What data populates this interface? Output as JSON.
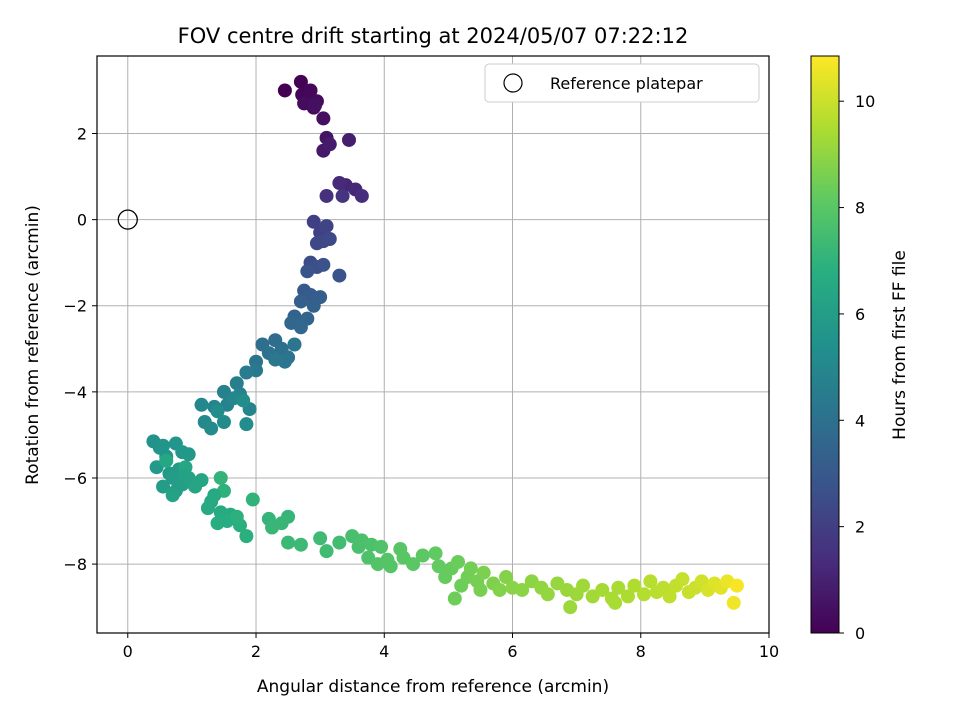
{
  "chart_data": {
    "type": "scatter",
    "title": "FOV centre drift starting at 2024/05/07 07:22:12",
    "xlabel": "Angular distance from reference (arcmin)",
    "ylabel": "Rotation from reference (arcmin)",
    "xlim": [
      -0.48,
      10
    ],
    "ylim": [
      -9.6,
      3.8
    ],
    "xticks": [
      0,
      2,
      4,
      6,
      8,
      10
    ],
    "yticks": [
      -8,
      -6,
      -4,
      -2,
      0,
      2
    ],
    "grid": true,
    "legend": {
      "position": "upper-right",
      "label": "Reference platepar"
    },
    "reference_point": {
      "x": 0,
      "y": 0
    },
    "colorbar": {
      "label": "Hours from first FF file",
      "range": [
        0,
        10.85
      ],
      "ticks": [
        0,
        2,
        4,
        6,
        8,
        10
      ],
      "colormap": "viridis"
    },
    "series": [
      {
        "columns": [
          "x",
          "y",
          "hours"
        ],
        "points": [
          [
            2.45,
            3.0,
            0.0
          ],
          [
            2.7,
            3.2,
            0.05
          ],
          [
            2.72,
            2.9,
            0.1
          ],
          [
            2.8,
            2.75,
            0.15
          ],
          [
            2.85,
            3.0,
            0.2
          ],
          [
            2.9,
            2.6,
            0.25
          ],
          [
            2.95,
            2.75,
            0.3
          ],
          [
            2.75,
            2.7,
            0.35
          ],
          [
            3.05,
            2.35,
            0.4
          ],
          [
            2.92,
            2.65,
            0.45
          ],
          [
            3.1,
            1.9,
            0.6
          ],
          [
            3.05,
            1.6,
            0.7
          ],
          [
            3.15,
            1.75,
            0.8
          ],
          [
            3.45,
            1.85,
            0.9
          ],
          [
            3.4,
            0.8,
            1.1
          ],
          [
            3.55,
            0.7,
            1.2
          ],
          [
            3.3,
            0.85,
            1.3
          ],
          [
            3.65,
            0.55,
            1.4
          ],
          [
            3.1,
            0.55,
            1.5
          ],
          [
            3.35,
            0.55,
            1.6
          ],
          [
            2.9,
            -0.05,
            2.0
          ],
          [
            3.0,
            -0.3,
            2.1
          ],
          [
            3.1,
            -0.15,
            2.2
          ],
          [
            3.05,
            -0.5,
            2.3
          ],
          [
            2.95,
            -0.55,
            2.35
          ],
          [
            3.15,
            -0.45,
            2.4
          ],
          [
            2.85,
            -1.0,
            2.5
          ],
          [
            2.95,
            -1.1,
            2.6
          ],
          [
            3.05,
            -1.05,
            2.7
          ],
          [
            2.8,
            -1.2,
            2.75
          ],
          [
            3.3,
            -1.3,
            2.8
          ],
          [
            2.75,
            -1.65,
            3.0
          ],
          [
            2.85,
            -1.75,
            3.1
          ],
          [
            3.0,
            -1.8,
            3.2
          ],
          [
            2.7,
            -1.9,
            3.3
          ],
          [
            2.9,
            -2.0,
            3.35
          ],
          [
            2.6,
            -2.25,
            3.4
          ],
          [
            2.8,
            -2.3,
            3.5
          ],
          [
            2.55,
            -2.4,
            3.6
          ],
          [
            2.7,
            -2.5,
            3.65
          ],
          [
            2.3,
            -2.8,
            3.8
          ],
          [
            2.1,
            -2.9,
            3.9
          ],
          [
            2.4,
            -3.0,
            4.0
          ],
          [
            2.2,
            -3.1,
            4.05
          ],
          [
            2.5,
            -3.2,
            4.1
          ],
          [
            2.0,
            -3.3,
            4.15
          ],
          [
            2.6,
            -2.9,
            4.2
          ],
          [
            2.45,
            -3.3,
            4.25
          ],
          [
            2.3,
            -3.25,
            4.3
          ],
          [
            2.0,
            -3.5,
            4.35
          ],
          [
            1.85,
            -3.55,
            4.5
          ],
          [
            1.7,
            -3.8,
            4.6
          ],
          [
            1.5,
            -4.0,
            4.7
          ],
          [
            1.75,
            -4.05,
            4.75
          ],
          [
            1.55,
            -4.3,
            4.8
          ],
          [
            1.9,
            -4.4,
            4.85
          ],
          [
            1.35,
            -4.35,
            4.9
          ],
          [
            1.65,
            -4.15,
            4.95
          ],
          [
            1.15,
            -4.3,
            5.0
          ],
          [
            1.2,
            -4.7,
            5.05
          ],
          [
            1.3,
            -4.85,
            5.1
          ],
          [
            1.5,
            -4.7,
            5.15
          ],
          [
            1.85,
            -4.75,
            5.2
          ],
          [
            1.4,
            -4.45,
            5.25
          ],
          [
            1.8,
            -4.2,
            5.3
          ],
          [
            0.4,
            -5.15,
            5.5
          ],
          [
            0.5,
            -5.3,
            5.55
          ],
          [
            0.6,
            -5.5,
            5.6
          ],
          [
            0.75,
            -5.2,
            5.65
          ],
          [
            0.85,
            -5.4,
            5.7
          ],
          [
            0.95,
            -5.45,
            5.75
          ],
          [
            0.45,
            -5.75,
            5.8
          ],
          [
            0.65,
            -5.9,
            5.85
          ],
          [
            0.8,
            -5.8,
            5.9
          ],
          [
            0.7,
            -6.0,
            5.95
          ],
          [
            0.55,
            -6.2,
            6.0
          ],
          [
            0.75,
            -6.3,
            6.05
          ],
          [
            0.85,
            -6.15,
            6.1
          ],
          [
            1.0,
            -6.1,
            6.15
          ],
          [
            0.7,
            -6.4,
            6.2
          ],
          [
            0.95,
            -6.0,
            6.25
          ],
          [
            1.05,
            -6.2,
            6.3
          ],
          [
            1.15,
            -6.05,
            6.35
          ],
          [
            0.9,
            -5.75,
            6.4
          ],
          [
            0.6,
            -5.6,
            6.45
          ],
          [
            1.3,
            -6.55,
            6.5
          ],
          [
            1.25,
            -6.7,
            6.55
          ],
          [
            1.45,
            -6.8,
            6.6
          ],
          [
            1.6,
            -6.85,
            6.65
          ],
          [
            1.55,
            -7.0,
            6.7
          ],
          [
            1.4,
            -7.05,
            6.75
          ],
          [
            1.75,
            -7.1,
            6.8
          ],
          [
            1.85,
            -7.35,
            6.85
          ],
          [
            1.7,
            -6.9,
            6.9
          ],
          [
            1.5,
            -6.3,
            6.95
          ],
          [
            1.95,
            -6.5,
            7.0
          ],
          [
            1.45,
            -6.0,
            7.05
          ],
          [
            2.2,
            -6.95,
            7.1
          ],
          [
            2.5,
            -6.9,
            7.15
          ],
          [
            2.4,
            -7.05,
            7.2
          ],
          [
            2.5,
            -7.5,
            7.25
          ],
          [
            2.7,
            -7.55,
            7.3
          ],
          [
            3.0,
            -7.4,
            7.35
          ],
          [
            3.1,
            -7.7,
            7.4
          ],
          [
            3.3,
            -7.5,
            7.45
          ],
          [
            3.5,
            -7.35,
            7.6
          ],
          [
            3.65,
            -7.45,
            7.65
          ],
          [
            3.8,
            -7.55,
            7.7
          ],
          [
            3.75,
            -7.85,
            7.75
          ],
          [
            3.95,
            -7.6,
            7.8
          ],
          [
            3.9,
            -8.0,
            7.85
          ],
          [
            4.05,
            -7.9,
            7.9
          ],
          [
            4.25,
            -7.65,
            7.95
          ],
          [
            4.3,
            -7.85,
            8.0
          ],
          [
            4.45,
            -8.0,
            8.05
          ],
          [
            4.6,
            -7.8,
            8.1
          ],
          [
            4.8,
            -7.75,
            8.15
          ],
          [
            4.85,
            -8.05,
            8.2
          ],
          [
            4.95,
            -8.3,
            8.25
          ],
          [
            5.05,
            -8.1,
            8.3
          ],
          [
            5.15,
            -7.95,
            8.35
          ],
          [
            5.2,
            -8.5,
            8.4
          ],
          [
            5.3,
            -8.3,
            8.45
          ],
          [
            5.35,
            -8.1,
            8.5
          ],
          [
            5.45,
            -8.4,
            8.55
          ],
          [
            5.5,
            -8.6,
            8.6
          ],
          [
            5.55,
            -8.2,
            8.65
          ],
          [
            5.7,
            -8.45,
            8.7
          ],
          [
            5.8,
            -8.6,
            8.75
          ],
          [
            5.9,
            -8.3,
            8.8
          ],
          [
            6.0,
            -8.55,
            8.85
          ],
          [
            6.15,
            -8.6,
            8.9
          ],
          [
            6.3,
            -8.4,
            8.95
          ],
          [
            6.45,
            -8.55,
            9.0
          ],
          [
            6.55,
            -8.7,
            9.05
          ],
          [
            6.7,
            -8.45,
            9.1
          ],
          [
            6.85,
            -8.6,
            9.15
          ],
          [
            7.0,
            -8.7,
            9.2
          ],
          [
            7.1,
            -8.5,
            9.25
          ],
          [
            7.25,
            -8.75,
            9.3
          ],
          [
            7.4,
            -8.6,
            9.35
          ],
          [
            7.55,
            -8.8,
            9.4
          ],
          [
            7.65,
            -8.55,
            9.45
          ],
          [
            7.8,
            -8.75,
            9.5
          ],
          [
            7.9,
            -8.5,
            9.55
          ],
          [
            8.05,
            -8.7,
            9.6
          ],
          [
            8.15,
            -8.4,
            9.65
          ],
          [
            8.25,
            -8.65,
            9.7
          ],
          [
            8.35,
            -8.55,
            9.75
          ],
          [
            8.45,
            -8.75,
            9.8
          ],
          [
            8.55,
            -8.5,
            9.85
          ],
          [
            8.65,
            -8.35,
            9.9
          ],
          [
            8.75,
            -8.65,
            9.95
          ],
          [
            8.85,
            -8.55,
            10.0
          ],
          [
            8.95,
            -8.4,
            10.1
          ],
          [
            9.05,
            -8.6,
            10.2
          ],
          [
            9.15,
            -8.45,
            10.3
          ],
          [
            9.25,
            -8.55,
            10.4
          ],
          [
            9.35,
            -8.4,
            10.55
          ],
          [
            9.45,
            -8.9,
            10.65
          ],
          [
            9.5,
            -8.5,
            10.75
          ],
          [
            5.1,
            -8.8,
            8.4
          ],
          [
            6.9,
            -9.0,
            9.2
          ],
          [
            7.6,
            -8.9,
            9.4
          ],
          [
            4.1,
            -8.05,
            7.9
          ],
          [
            3.6,
            -7.6,
            7.65
          ],
          [
            2.25,
            -7.15,
            7.2
          ],
          [
            1.35,
            -6.4,
            6.6
          ],
          [
            0.55,
            -5.25,
            5.6
          ],
          [
            0.9,
            -5.95,
            6.2
          ]
        ]
      }
    ]
  }
}
